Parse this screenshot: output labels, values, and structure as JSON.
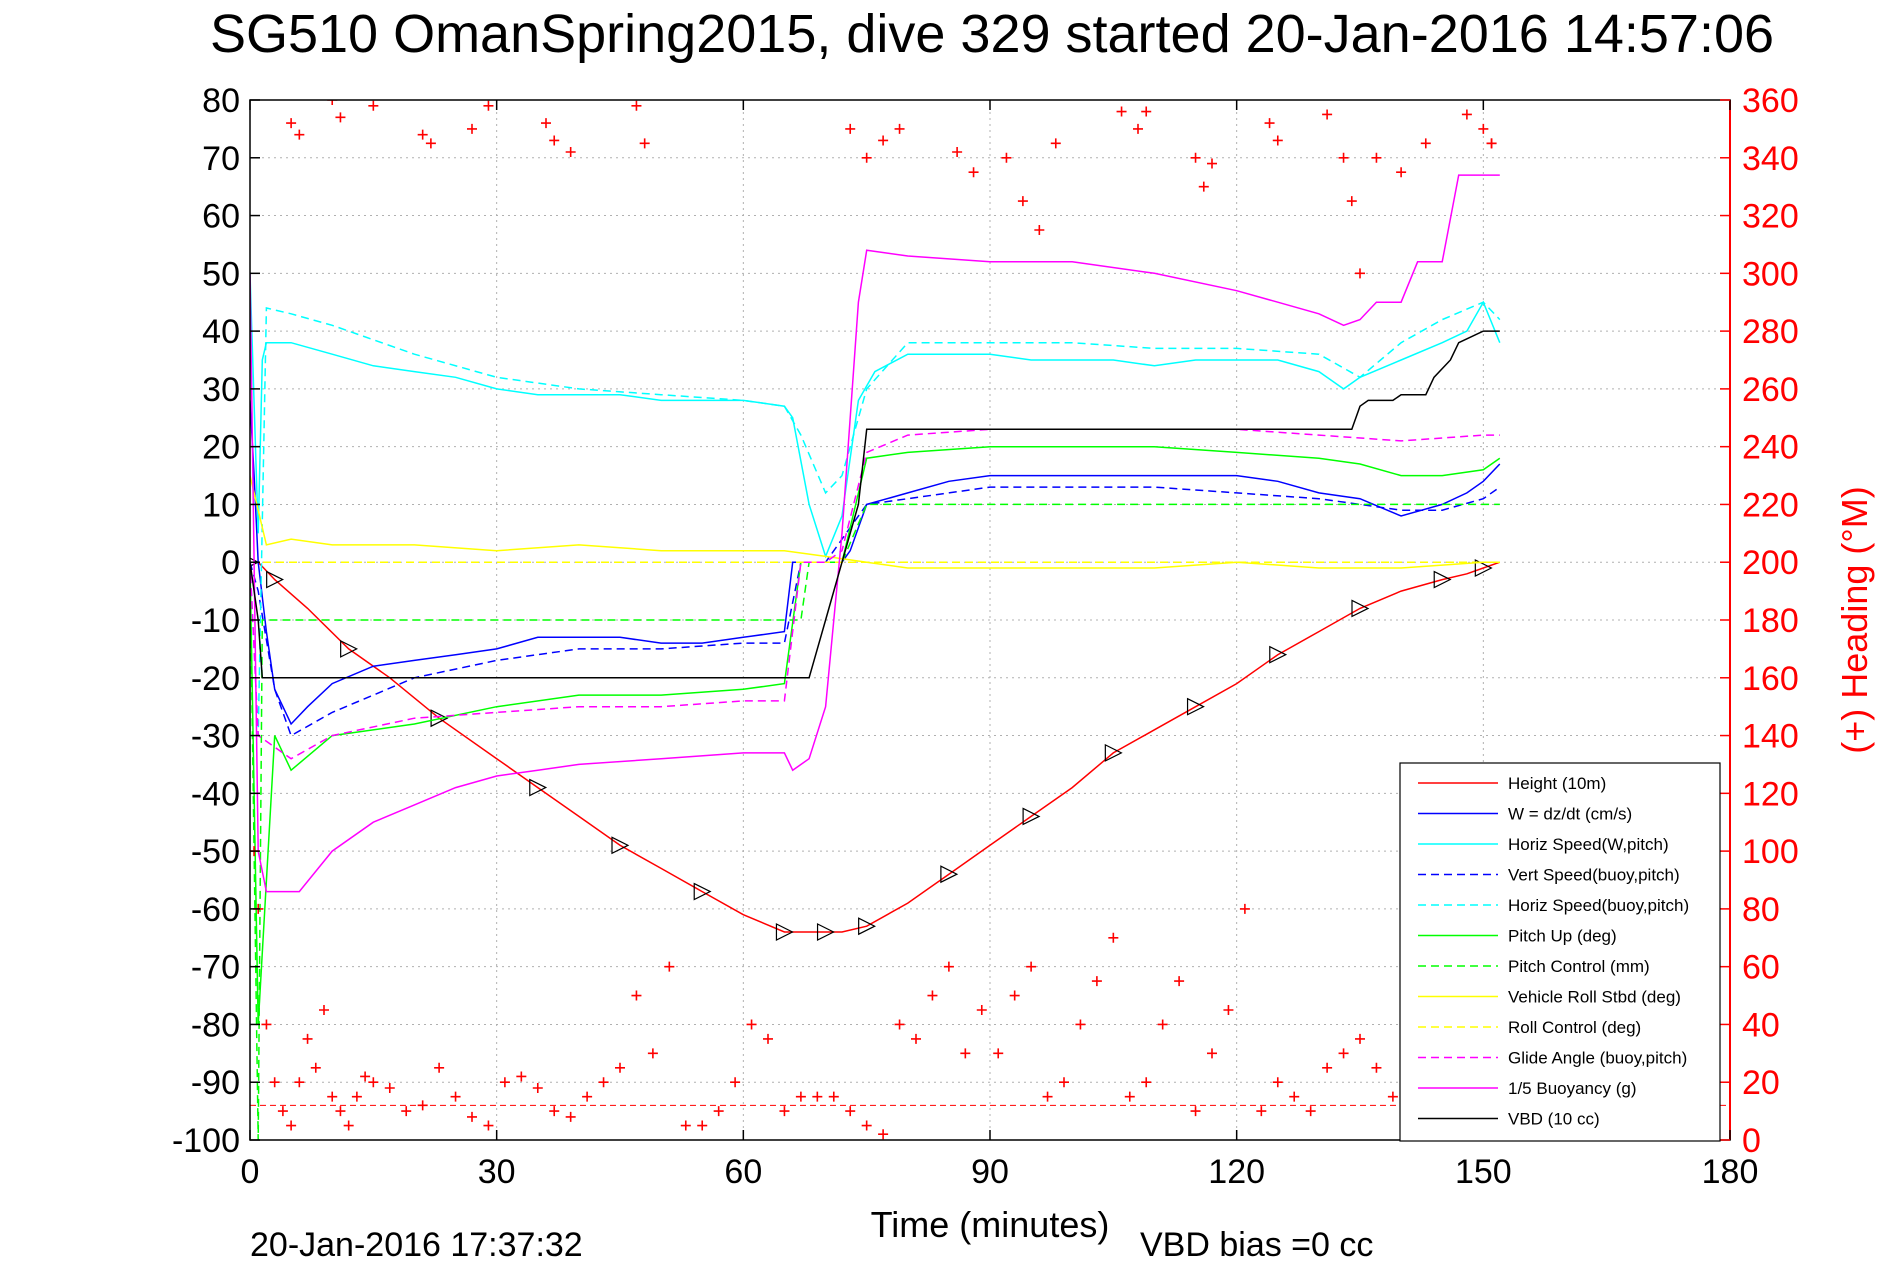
{
  "chart_data": {
    "type": "line",
    "title": "SG510 OmanSpring2015, dive 329 started 20-Jan-2016 14:57:06",
    "xlabel": "Time (minutes)",
    "ylabel": "",
    "y2label": "(+) Heading (°M)",
    "xlim": [
      0,
      180
    ],
    "ylim": [
      -100,
      80
    ],
    "y2lim": [
      0,
      360
    ],
    "xticks": [
      0,
      30,
      60,
      90,
      120,
      150,
      180
    ],
    "yticks": [
      80,
      70,
      60,
      50,
      40,
      30,
      20,
      10,
      0,
      -10,
      -20,
      -30,
      -40,
      -50,
      -60,
      -70,
      -80,
      -90,
      -100
    ],
    "y2ticks": [
      360,
      340,
      320,
      300,
      280,
      260,
      240,
      220,
      200,
      180,
      160,
      140,
      120,
      100,
      80,
      60,
      40,
      20,
      0
    ],
    "grid": true,
    "legend_position": "bottom-right",
    "footer_left": "20-Jan-2016 17:37:32",
    "footer_right": "VBD bias =0 cc",
    "colors": {
      "height": "#ff0000",
      "w": "#0000ff",
      "horiz": "#00ffff",
      "vert_buoy": "#0000ff",
      "horiz_buoy": "#00ffff",
      "pitch": "#00ff00",
      "pitch_ctrl": "#00ff00",
      "roll": "#ffff00",
      "roll_ctrl": "#ffff00",
      "glide": "#ff00ff",
      "buoy": "#ff00ff",
      "vbd": "#000000",
      "heading": "#ff0000"
    },
    "series": [
      {
        "name": "Height (10m)",
        "key": "height",
        "style": "solid",
        "x": [
          0,
          1,
          3,
          7,
          12,
          17,
          23,
          30,
          35,
          40,
          45,
          50,
          55,
          60,
          65,
          68,
          70,
          72,
          75,
          80,
          85,
          90,
          95,
          100,
          105,
          110,
          115,
          120,
          125,
          130,
          135,
          140,
          145,
          148,
          150,
          152
        ],
        "y": [
          0,
          0,
          -3,
          -8,
          -15,
          -20,
          -27,
          -34,
          -39,
          -44,
          -49,
          -53,
          -57,
          -61,
          -64,
          -64,
          -64,
          -64,
          -63,
          -59,
          -54,
          -49,
          -44,
          -39,
          -33,
          -29,
          -25,
          -21,
          -16,
          -12,
          -8,
          -5,
          -3,
          -2,
          -1,
          0
        ]
      },
      {
        "name": "W = dz/dt (cm/s)",
        "key": "w",
        "style": "solid",
        "x": [
          0,
          0.5,
          1,
          2,
          3,
          5,
          7,
          10,
          15,
          20,
          25,
          30,
          35,
          40,
          45,
          50,
          55,
          60,
          65,
          66,
          67,
          70,
          72,
          73,
          75,
          80,
          85,
          90,
          95,
          100,
          105,
          110,
          115,
          120,
          125,
          130,
          135,
          140,
          145,
          148,
          150,
          152
        ],
        "y": [
          28,
          15,
          0,
          -12,
          -22,
          -28,
          -25,
          -21,
          -18,
          -17,
          -16,
          -15,
          -13,
          -13,
          -13,
          -14,
          -14,
          -13,
          -12,
          0,
          0,
          0,
          0,
          2,
          10,
          12,
          14,
          15,
          15,
          15,
          15,
          15,
          15,
          15,
          14,
          12,
          11,
          8,
          10,
          12,
          14,
          17
        ]
      },
      {
        "name": "Horiz Speed(W,pitch)",
        "key": "horiz",
        "style": "solid",
        "x": [
          0,
          1,
          1.5,
          2,
          5,
          10,
          15,
          20,
          25,
          30,
          35,
          40,
          45,
          50,
          55,
          60,
          65,
          66,
          68,
          70,
          72,
          74,
          76,
          80,
          85,
          90,
          95,
          100,
          105,
          110,
          115,
          120,
          125,
          130,
          133,
          135,
          140,
          145,
          148,
          150,
          152
        ],
        "y": [
          50,
          5,
          35,
          38,
          38,
          36,
          34,
          33,
          32,
          30,
          29,
          29,
          29,
          28,
          28,
          28,
          27,
          25,
          10,
          1,
          8,
          28,
          33,
          36,
          36,
          36,
          35,
          35,
          35,
          34,
          35,
          35,
          35,
          33,
          30,
          32,
          35,
          38,
          40,
          45,
          38
        ]
      },
      {
        "name": "Vert Speed(buoy,pitch)",
        "key": "vert_buoy",
        "style": "dash",
        "x": [
          0,
          1,
          3,
          5,
          10,
          20,
          30,
          40,
          50,
          60,
          65,
          67,
          70,
          75,
          80,
          90,
          100,
          110,
          120,
          130,
          135,
          140,
          145,
          150,
          152
        ],
        "y": [
          0,
          -5,
          -22,
          -30,
          -26,
          -20,
          -17,
          -15,
          -15,
          -14,
          -14,
          0,
          0,
          10,
          11,
          13,
          13,
          13,
          12,
          11,
          10,
          9,
          9,
          11,
          13
        ]
      },
      {
        "name": "Horiz Speed(buoy,pitch)",
        "key": "horiz_buoy",
        "style": "dash",
        "x": [
          0,
          1,
          2,
          5,
          10,
          20,
          30,
          40,
          50,
          60,
          65,
          67,
          70,
          72,
          75,
          80,
          90,
          100,
          110,
          120,
          130,
          135,
          140,
          145,
          150,
          152
        ],
        "y": [
          0,
          -30,
          44,
          43,
          41,
          36,
          32,
          30,
          29,
          28,
          27,
          22,
          12,
          15,
          30,
          38,
          38,
          38,
          37,
          37,
          36,
          32,
          38,
          42,
          45,
          42
        ]
      },
      {
        "name": "Pitch Up (deg)",
        "key": "pitch",
        "style": "solid",
        "x": [
          0,
          1,
          3,
          5,
          10,
          20,
          30,
          40,
          50,
          60,
          65,
          67,
          70,
          72,
          75,
          80,
          90,
          100,
          110,
          120,
          130,
          135,
          140,
          145,
          150,
          152
        ],
        "y": [
          0,
          -80,
          -30,
          -36,
          -30,
          -28,
          -25,
          -23,
          -23,
          -22,
          -21,
          0,
          0,
          0,
          18,
          19,
          20,
          20,
          20,
          19,
          18,
          17,
          15,
          15,
          16,
          18
        ]
      },
      {
        "name": "Pitch Control (mm)",
        "key": "pitch_ctrl",
        "style": "dash",
        "x": [
          0,
          1,
          1.5,
          2,
          67,
          68,
          72,
          75,
          135,
          136,
          152
        ],
        "y": [
          0,
          -100,
          -10,
          -10,
          -10,
          0,
          0,
          10,
          10,
          10,
          10
        ]
      },
      {
        "name": "Vehicle Roll Stbd (deg)",
        "key": "roll",
        "style": "solid",
        "x": [
          0,
          2,
          5,
          10,
          20,
          30,
          40,
          50,
          60,
          65,
          70,
          75,
          80,
          90,
          100,
          110,
          120,
          130,
          140,
          150,
          152
        ],
        "y": [
          15,
          3,
          4,
          3,
          3,
          2,
          3,
          2,
          2,
          2,
          1,
          0,
          -1,
          -1,
          -1,
          -1,
          0,
          -1,
          -1,
          0,
          0
        ]
      },
      {
        "name": "Roll Control (deg)",
        "key": "roll_ctrl",
        "style": "dash",
        "x": [
          0,
          5,
          152
        ],
        "y": [
          0,
          0,
          0
        ]
      },
      {
        "name": "Glide Angle (buoy,pitch)",
        "key": "glide",
        "style": "dash",
        "x": [
          0,
          1,
          3,
          5,
          10,
          20,
          30,
          40,
          50,
          60,
          65,
          67,
          70,
          72,
          75,
          80,
          90,
          100,
          110,
          120,
          130,
          140,
          150,
          152
        ],
        "y": [
          0,
          -30,
          -32,
          -34,
          -30,
          -27,
          -26,
          -25,
          -25,
          -24,
          -24,
          0,
          0,
          2,
          19,
          22,
          23,
          23,
          23,
          23,
          22,
          21,
          22,
          22
        ]
      },
      {
        "name": "1/5 Buoyancy (g)",
        "key": "buoy",
        "style": "solid",
        "x": [
          0,
          1,
          2,
          4,
          6,
          10,
          15,
          20,
          25,
          30,
          35,
          40,
          50,
          60,
          65,
          66,
          68,
          70,
          72,
          74,
          75,
          80,
          90,
          100,
          110,
          120,
          125,
          130,
          133,
          135,
          137,
          140,
          142,
          145,
          147,
          152
        ],
        "y": [
          50,
          -50,
          -57,
          -57,
          -57,
          -50,
          -45,
          -42,
          -39,
          -37,
          -36,
          -35,
          -34,
          -33,
          -33,
          -36,
          -34,
          -25,
          5,
          45,
          54,
          53,
          52,
          52,
          50,
          47,
          45,
          43,
          41,
          42,
          45,
          45,
          52,
          52,
          67,
          67
        ]
      },
      {
        "name": "VBD (10 cc)",
        "key": "vbd",
        "style": "solid",
        "x": [
          0,
          1,
          1.5,
          2,
          66,
          68,
          70,
          72,
          74,
          75,
          120,
          125,
          130,
          134,
          135,
          136,
          139,
          140,
          143,
          144,
          146,
          147,
          150,
          152
        ],
        "y": [
          0,
          -10,
          -20,
          -20,
          -20,
          -20,
          -10,
          0,
          10,
          23,
          23,
          23,
          23,
          23,
          27,
          28,
          28,
          29,
          29,
          32,
          35,
          38,
          40,
          40
        ]
      },
      {
        "name": "",
        "key": "heading",
        "style": "markers",
        "axis": "right",
        "x": [
          0.5,
          1,
          2,
          3,
          4,
          5,
          6,
          7,
          8,
          9,
          10,
          11,
          12,
          13,
          14,
          15,
          17,
          19,
          21,
          23,
          25,
          27,
          29,
          31,
          33,
          35,
          37,
          39,
          41,
          43,
          45,
          47,
          49,
          51,
          53,
          55,
          57,
          59,
          61,
          63,
          65,
          67,
          69,
          71,
          73,
          75,
          77,
          79,
          81,
          83,
          85,
          87,
          89,
          91,
          93,
          95,
          97,
          99,
          101,
          103,
          105,
          107,
          109,
          111,
          113,
          115,
          117,
          119,
          121,
          123,
          125,
          127,
          129,
          131,
          133,
          135,
          137,
          139,
          141,
          143,
          145,
          147,
          149,
          151
        ],
        "y": [
          100,
          80,
          40,
          20,
          10,
          5,
          20,
          35,
          25,
          45,
          15,
          10,
          5,
          15,
          22,
          20,
          18,
          10,
          12,
          25,
          15,
          8,
          5,
          20,
          22,
          18,
          10,
          8,
          15,
          20,
          25,
          50,
          30,
          60,
          5,
          5,
          10,
          20,
          40,
          35,
          10,
          15,
          15,
          15,
          10,
          5,
          2,
          40,
          35,
          50,
          60,
          30,
          45,
          30,
          50,
          60,
          15,
          20,
          40,
          55,
          70,
          15,
          20,
          40,
          55,
          10,
          30,
          45,
          80,
          10,
          20,
          15,
          10,
          25,
          30,
          35,
          25,
          15,
          10,
          10,
          20,
          10,
          10,
          345
        ]
      },
      {
        "name": "",
        "key": "heading",
        "style": "markers",
        "axis": "right",
        "x": [
          5,
          6,
          10,
          11,
          15,
          21,
          22,
          27,
          29,
          36,
          37,
          39,
          47,
          48,
          73,
          75,
          77,
          79,
          86,
          88,
          92,
          94,
          96,
          98,
          106,
          108,
          109,
          115,
          116,
          117,
          124,
          125,
          131,
          133,
          134,
          135,
          137,
          140,
          143,
          148,
          150,
          151
        ],
        "y": [
          352,
          348,
          360,
          354,
          358,
          348,
          345,
          350,
          358,
          352,
          346,
          342,
          358,
          345,
          350,
          340,
          346,
          350,
          342,
          335,
          340,
          325,
          315,
          345,
          356,
          350,
          356,
          340,
          330,
          338,
          352,
          346,
          355,
          340,
          325,
          300,
          340,
          335,
          345,
          355,
          350,
          345
        ]
      }
    ]
  }
}
